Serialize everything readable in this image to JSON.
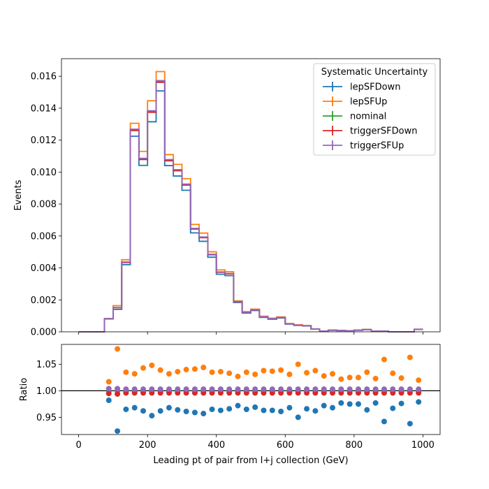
{
  "chart_data": {
    "type": "step",
    "bin_width": 25,
    "bin_start": 0,
    "xlabel": "Leading pt of pair from l+j collection (GeV)",
    "xlim": [
      -50,
      1050
    ],
    "xticks": [
      0,
      200,
      400,
      600,
      800,
      1000
    ],
    "top": {
      "ylabel": "Events",
      "ylim": [
        0,
        0.0171
      ],
      "yticks": [
        "0.000",
        "0.002",
        "0.004",
        "0.006",
        "0.008",
        "0.010",
        "0.012",
        "0.014",
        "0.016"
      ],
      "ytick_values": [
        0,
        0.002,
        0.004,
        0.006,
        0.008,
        0.01,
        0.012,
        0.014,
        0.016
      ],
      "nominal": [
        0,
        0,
        0,
        0.00082,
        0.00152,
        0.00436,
        0.01265,
        0.01083,
        0.0138,
        0.01568,
        0.01075,
        0.01012,
        0.00922,
        0.00646,
        0.00592,
        0.00484,
        0.00374,
        0.00364,
        0.00189,
        0.00122,
        0.00138,
        0.00094,
        0.00082,
        0.0009,
        0.0005,
        0.00042,
        0.00038,
        0.00018,
        4e-05,
        0.0001,
        8e-05,
        6e-05,
        0.0001,
        0.00014,
        4e-05,
        4e-05,
        0,
        0,
        0,
        0.00016
      ]
    },
    "bottom": {
      "ylabel": "Ratio",
      "ylim": [
        0.9175,
        1.0875
      ],
      "yticks": [
        "0.95",
        "1.00",
        "1.05"
      ],
      "ytick_values": [
        0.95,
        1.0,
        1.05
      ],
      "reference_line": 1.0
    },
    "legend": {
      "title": "Systematic Uncertainty",
      "position": "top-right"
    },
    "series": [
      {
        "name": "lepSFDown",
        "color": "#1f77b4",
        "ratio_x": [
          87.5,
          112.5,
          137.5,
          162.5,
          187.5,
          212.5,
          237.5,
          262.5,
          287.5,
          312.5,
          337.5,
          362.5,
          387.5,
          412.5,
          437.5,
          462.5,
          487.5,
          512.5,
          537.5,
          562.5,
          587.5,
          612.5,
          637.5,
          662.5,
          687.5,
          712.5,
          737.5,
          762.5,
          787.5,
          812.5,
          837.5,
          862.5,
          887.5,
          912.5,
          937.5,
          962.5,
          987.5
        ],
        "ratio_y": [
          0.982,
          0.924,
          0.965,
          0.968,
          0.962,
          0.953,
          0.962,
          0.968,
          0.964,
          0.961,
          0.959,
          0.957,
          0.965,
          0.963,
          0.966,
          0.972,
          0.965,
          0.969,
          0.963,
          0.963,
          0.961,
          0.968,
          0.95,
          0.966,
          0.962,
          0.972,
          0.968,
          0.977,
          0.975,
          0.975,
          0.964,
          0.977,
          0.942,
          0.967,
          0.976,
          0.938,
          0.979
        ]
      },
      {
        "name": "lepSFUp",
        "color": "#ff7f0e",
        "ratio_x": [
          87.5,
          112.5,
          137.5,
          162.5,
          187.5,
          212.5,
          237.5,
          262.5,
          287.5,
          312.5,
          337.5,
          362.5,
          387.5,
          412.5,
          437.5,
          462.5,
          487.5,
          512.5,
          537.5,
          562.5,
          587.5,
          612.5,
          637.5,
          662.5,
          687.5,
          712.5,
          737.5,
          762.5,
          787.5,
          812.5,
          837.5,
          862.5,
          887.5,
          912.5,
          937.5,
          962.5,
          987.5
        ],
        "ratio_y": [
          1.017,
          1.079,
          1.035,
          1.032,
          1.043,
          1.048,
          1.039,
          1.032,
          1.036,
          1.04,
          1.041,
          1.044,
          1.035,
          1.036,
          1.033,
          1.027,
          1.035,
          1.031,
          1.038,
          1.037,
          1.039,
          1.031,
          1.05,
          1.034,
          1.038,
          1.028,
          1.032,
          1.022,
          1.025,
          1.025,
          1.035,
          1.023,
          1.059,
          1.033,
          1.024,
          1.063,
          1.02
        ]
      },
      {
        "name": "nominal",
        "color": "#2ca02c",
        "ratio_x": [
          87.5,
          112.5,
          137.5,
          162.5,
          187.5,
          212.5,
          237.5,
          262.5,
          287.5,
          312.5,
          337.5,
          362.5,
          387.5,
          412.5,
          437.5,
          462.5,
          487.5,
          512.5,
          537.5,
          562.5,
          587.5,
          612.5,
          637.5,
          662.5,
          687.5,
          712.5,
          737.5,
          762.5,
          787.5,
          812.5,
          837.5,
          862.5,
          887.5,
          912.5,
          937.5,
          962.5,
          987.5
        ],
        "ratio_y": [
          1.0,
          1.0,
          1.0,
          1.0,
          1.0,
          1.0,
          1.0,
          1.0,
          1.0,
          1.0,
          1.0,
          1.0,
          1.0,
          1.0,
          1.0,
          1.0,
          1.0,
          1.0,
          1.0,
          1.0,
          1.0,
          1.0,
          1.0,
          1.0,
          1.0,
          1.0,
          1.0,
          1.0,
          1.0,
          1.0,
          1.0,
          1.0,
          1.0,
          1.0,
          1.0,
          1.0,
          1.0
        ]
      },
      {
        "name": "triggerSFDown",
        "color": "#d62728",
        "ratio_x": [
          87.5,
          112.5,
          137.5,
          162.5,
          187.5,
          212.5,
          237.5,
          262.5,
          287.5,
          312.5,
          337.5,
          362.5,
          387.5,
          412.5,
          437.5,
          462.5,
          487.5,
          512.5,
          537.5,
          562.5,
          587.5,
          612.5,
          637.5,
          662.5,
          687.5,
          712.5,
          737.5,
          762.5,
          787.5,
          812.5,
          837.5,
          862.5,
          887.5,
          912.5,
          937.5,
          962.5,
          987.5
        ],
        "ratio_y": [
          0.995,
          0.994,
          0.996,
          0.996,
          0.996,
          0.996,
          0.996,
          0.996,
          0.996,
          0.996,
          0.996,
          0.996,
          0.996,
          0.996,
          0.996,
          0.996,
          0.996,
          0.996,
          0.996,
          0.996,
          0.996,
          0.996,
          0.996,
          0.996,
          0.996,
          0.996,
          0.996,
          0.996,
          0.996,
          0.996,
          0.996,
          0.996,
          0.996,
          0.996,
          0.996,
          0.996,
          0.996
        ]
      },
      {
        "name": "triggerSFUp",
        "color": "#9467bd",
        "ratio_x": [
          87.5,
          112.5,
          137.5,
          162.5,
          187.5,
          212.5,
          237.5,
          262.5,
          287.5,
          312.5,
          337.5,
          362.5,
          387.5,
          412.5,
          437.5,
          462.5,
          487.5,
          512.5,
          537.5,
          562.5,
          587.5,
          612.5,
          637.5,
          662.5,
          687.5,
          712.5,
          737.5,
          762.5,
          787.5,
          812.5,
          837.5,
          862.5,
          887.5,
          912.5,
          937.5,
          962.5,
          987.5
        ],
        "ratio_y": [
          1.004,
          1.004,
          1.003,
          1.003,
          1.003,
          1.003,
          1.003,
          1.003,
          1.003,
          1.003,
          1.003,
          1.003,
          1.003,
          1.003,
          1.003,
          1.003,
          1.003,
          1.003,
          1.003,
          1.003,
          1.003,
          1.003,
          1.003,
          1.003,
          1.003,
          1.003,
          1.003,
          1.003,
          1.003,
          1.003,
          1.003,
          1.003,
          1.003,
          1.003,
          1.003,
          1.003,
          1.003
        ]
      }
    ]
  }
}
